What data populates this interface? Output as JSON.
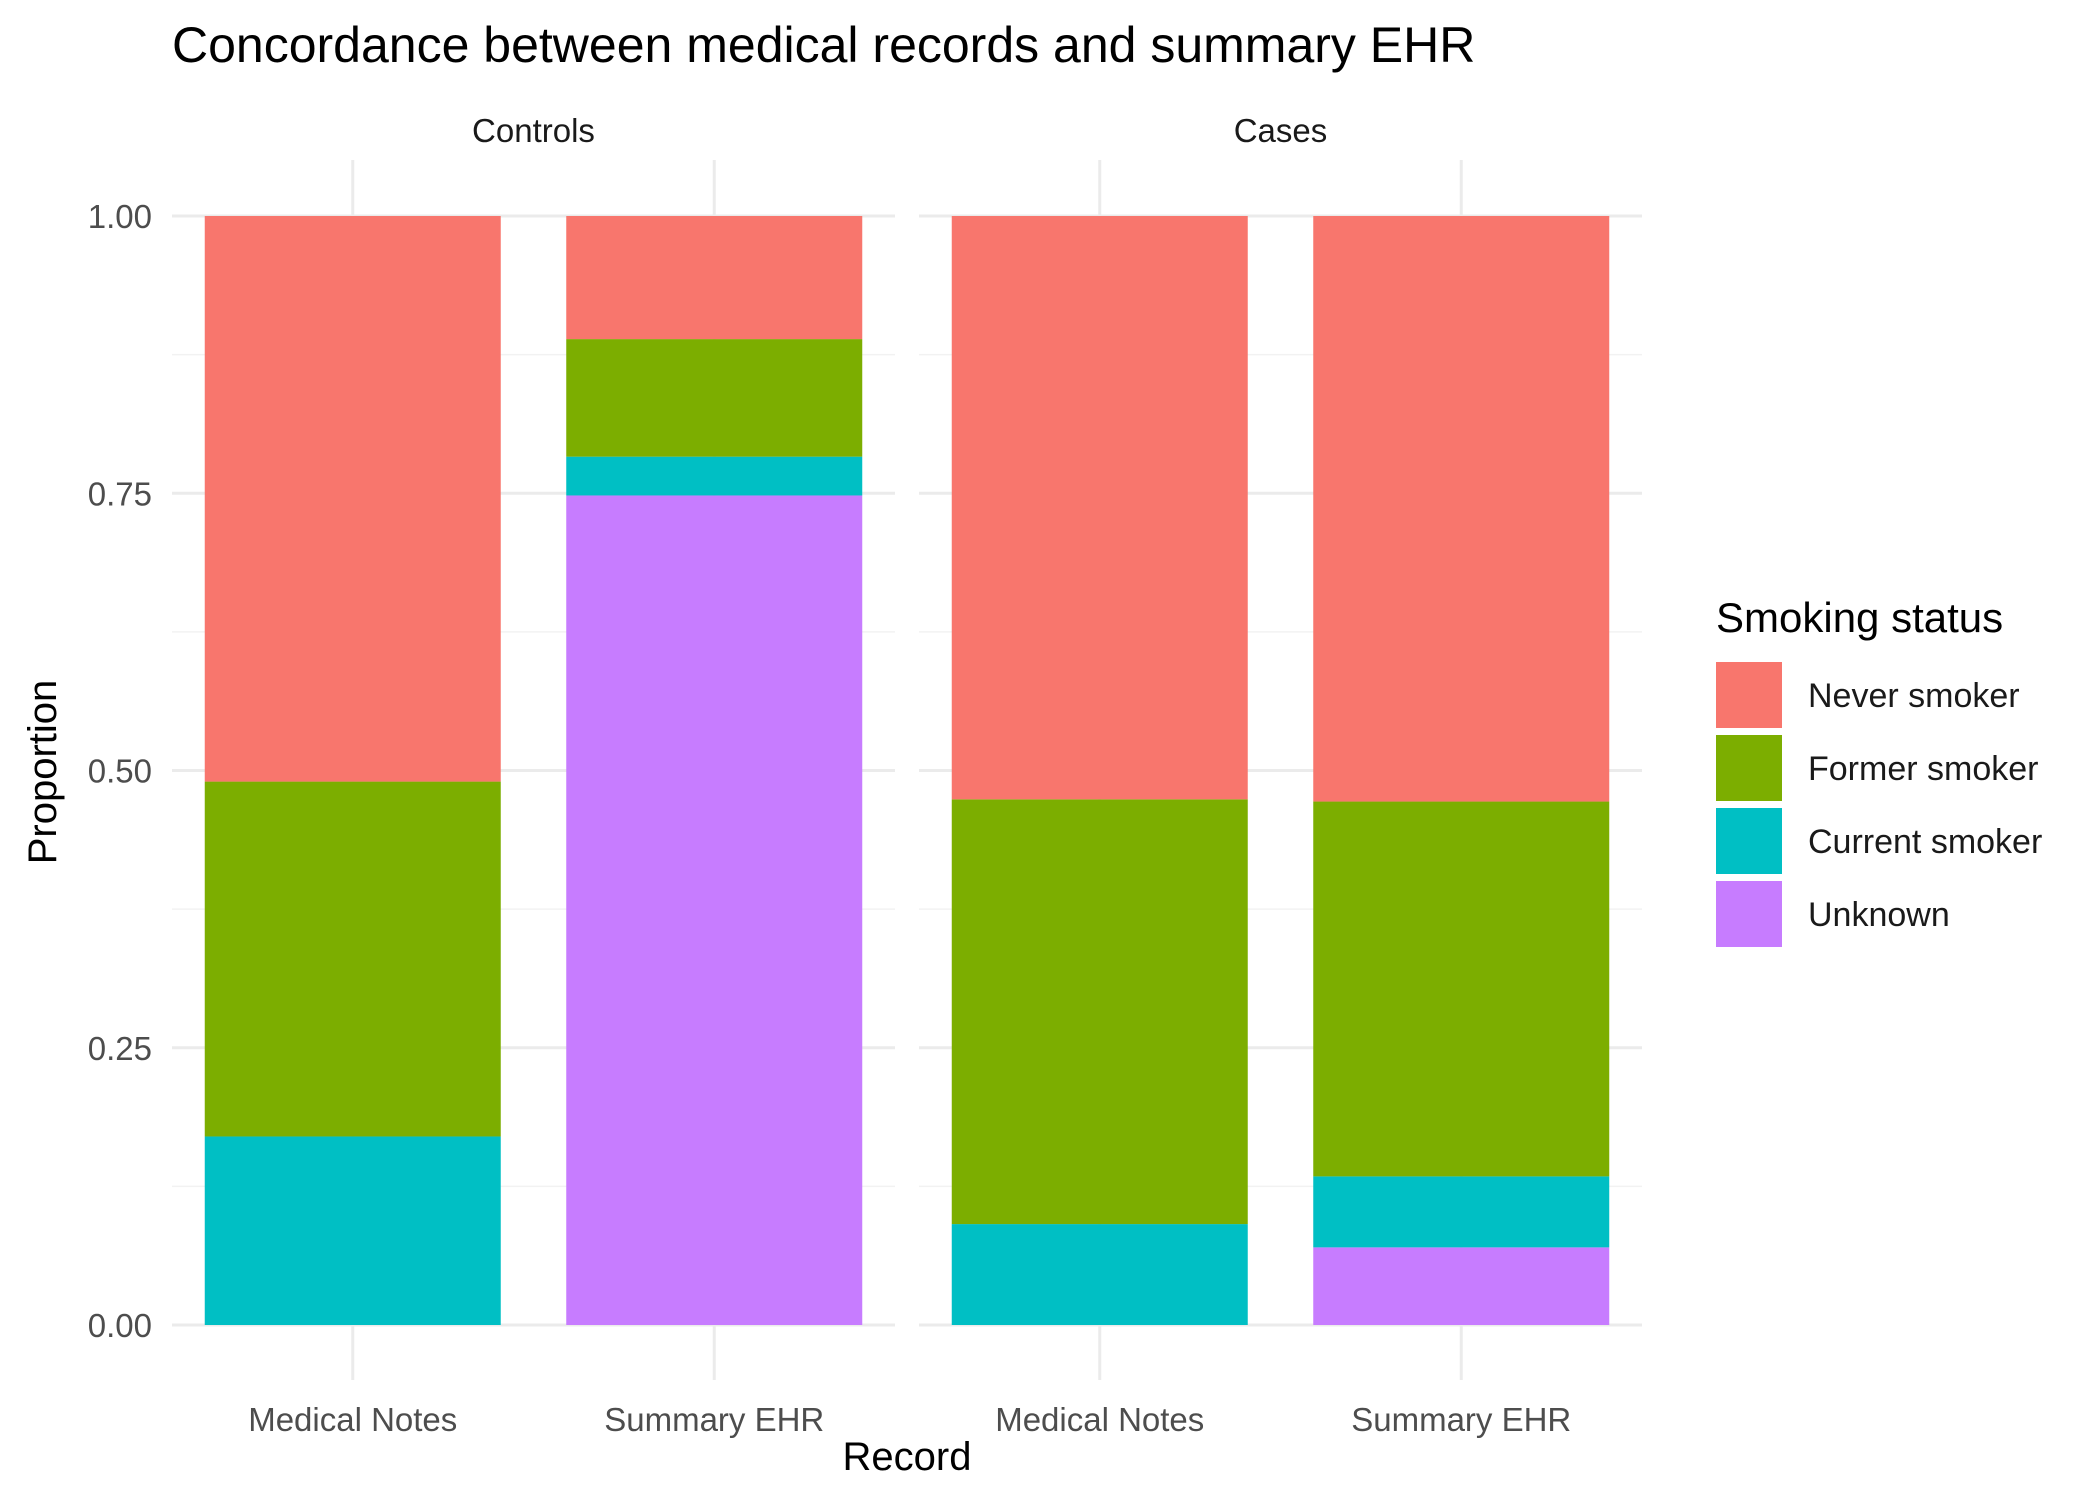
{
  "chart_data": {
    "type": "bar",
    "stacked": true,
    "title": "Concordance between medical records and summary EHR",
    "xlabel": "Record",
    "ylabel": "Proportion",
    "ylim": [
      0,
      1
    ],
    "yticks": [
      "0.00",
      "0.25",
      "0.50",
      "0.75",
      "1.00"
    ],
    "categories": [
      "Medical Notes",
      "Summary EHR"
    ],
    "legend": {
      "title": "Smoking status",
      "position": "right",
      "items": [
        {
          "label": "Never smoker",
          "color": "#F8766D"
        },
        {
          "label": "Former smoker",
          "color": "#7CAE00"
        },
        {
          "label": "Current smoker",
          "color": "#00BFC4"
        },
        {
          "label": "Unknown",
          "color": "#C77CFF"
        }
      ]
    },
    "grid": true,
    "stack_order_bottom_to_top": [
      "Unknown",
      "Current smoker",
      "Former smoker",
      "Never smoker"
    ],
    "facets": [
      {
        "label": "Controls",
        "bars": [
          {
            "category": "Medical Notes",
            "values": {
              "Unknown": 0.0,
              "Current smoker": 0.17,
              "Former smoker": 0.32,
              "Never smoker": 0.51
            }
          },
          {
            "category": "Summary EHR",
            "values": {
              "Unknown": 0.748,
              "Current smoker": 0.035,
              "Former smoker": 0.106,
              "Never smoker": 0.111
            }
          }
        ]
      },
      {
        "label": "Cases",
        "bars": [
          {
            "category": "Medical Notes",
            "values": {
              "Unknown": 0.0,
              "Current smoker": 0.091,
              "Former smoker": 0.383,
              "Never smoker": 0.526
            }
          },
          {
            "category": "Summary EHR",
            "values": {
              "Unknown": 0.07,
              "Current smoker": 0.064,
              "Former smoker": 0.338,
              "Never smoker": 0.528
            }
          }
        ]
      }
    ]
  }
}
